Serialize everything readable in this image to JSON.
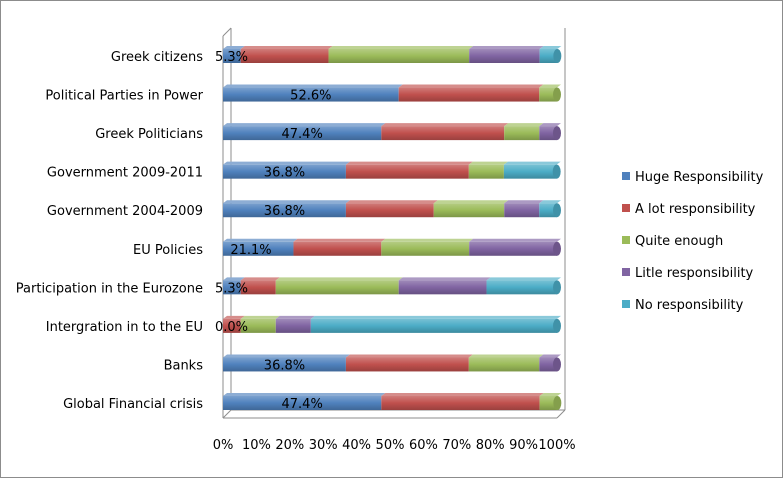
{
  "chart_data": {
    "type": "bar",
    "orientation": "horizontal",
    "stacked": "percent",
    "categories": [
      "Greek citizens",
      "Political Parties in Power",
      "Greek Politicians",
      "Government 2009-2011",
      "Government 2004-2009",
      "EU Policies",
      "Participation in the Eurozone",
      "Intergration in to the EU",
      "Banks",
      "Global Financial crisis"
    ],
    "series": [
      {
        "name": "Huge Responsibility",
        "color": "#4f81bd",
        "values": [
          5.3,
          52.6,
          47.4,
          36.8,
          36.8,
          21.1,
          5.3,
          0.0,
          36.8,
          47.4
        ]
      },
      {
        "name": "A lot responsibility",
        "color": "#c0504d",
        "values": [
          26.3,
          42.1,
          36.8,
          36.8,
          26.3,
          26.3,
          10.5,
          5.3,
          36.8,
          47.4
        ]
      },
      {
        "name": "Quite enough",
        "color": "#9bbb59",
        "values": [
          42.1,
          5.3,
          10.5,
          10.5,
          21.1,
          26.3,
          36.8,
          10.5,
          21.1,
          5.3
        ]
      },
      {
        "name": "Litle responsibility",
        "color": "#8064a2",
        "values": [
          21.1,
          0.0,
          5.3,
          0.0,
          10.5,
          26.3,
          26.3,
          10.5,
          5.3,
          0.0
        ]
      },
      {
        "name": "No responsibility",
        "color": "#4bacc6",
        "values": [
          5.3,
          0.0,
          0.0,
          15.8,
          5.3,
          0.0,
          21.1,
          73.7,
          0.0,
          0.0
        ]
      }
    ],
    "data_labels": [
      "5.3%",
      "52.6%",
      "47.4%",
      "36.8%",
      "36.8%",
      "21.1%",
      "5.3%",
      "0.0%",
      "36.8%",
      "47.4%"
    ],
    "x_ticks": [
      "0%",
      "10%",
      "20%",
      "30%",
      "40%",
      "50%",
      "60%",
      "70%",
      "80%",
      "90%",
      "100%"
    ],
    "xlim": [
      0,
      100
    ],
    "legend_position": "right",
    "grid": false
  }
}
